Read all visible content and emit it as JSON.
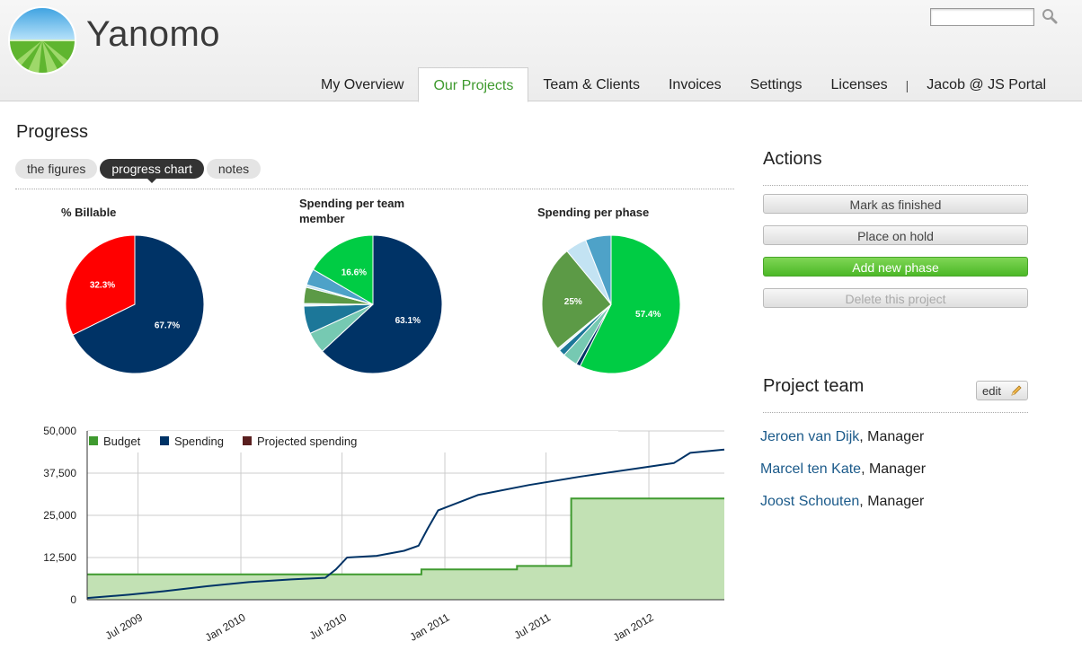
{
  "app": {
    "name": "Yanomo"
  },
  "search": {
    "placeholder": ""
  },
  "nav": {
    "tabs": [
      {
        "label": "My Overview"
      },
      {
        "label": "Our Projects"
      },
      {
        "label": "Team & Clients"
      },
      {
        "label": "Invoices"
      },
      {
        "label": "Settings"
      },
      {
        "label": "Licenses"
      }
    ],
    "separator": "|",
    "user": "Jacob @ JS Portal"
  },
  "progress": {
    "title": "Progress",
    "subtabs": [
      {
        "label": "the figures"
      },
      {
        "label": "progress chart"
      },
      {
        "label": "notes"
      }
    ]
  },
  "chart_data": [
    {
      "type": "pie",
      "title": "% Billable",
      "slices": [
        {
          "value": 67.7,
          "label": "67.7%",
          "color": "#003366"
        },
        {
          "value": 32.3,
          "label": "32.3%",
          "color": "#ff0000"
        }
      ]
    },
    {
      "type": "pie",
      "title": "Spending per team member",
      "slices": [
        {
          "value": 63.1,
          "label": "63.1%",
          "color": "#003366"
        },
        {
          "value": 5.0,
          "label": "",
          "color": "#76c9b2"
        },
        {
          "value": 6.5,
          "label": "",
          "color": "#1c7799"
        },
        {
          "value": 0.6,
          "label": "",
          "color": "#e6f3fb"
        },
        {
          "value": 3.8,
          "label": "",
          "color": "#5c9a46"
        },
        {
          "value": 0.6,
          "label": "",
          "color": "#c3e3f3"
        },
        {
          "value": 3.8,
          "label": "",
          "color": "#4ea2c8"
        },
        {
          "value": 16.6,
          "label": "16.6%",
          "color": "#00cc44"
        }
      ]
    },
    {
      "type": "pie",
      "title": "Spending per phase",
      "slices": [
        {
          "value": 57.4,
          "label": "57.4%",
          "color": "#00cc44"
        },
        {
          "value": 1.0,
          "label": "",
          "color": "#003366"
        },
        {
          "value": 3.5,
          "label": "",
          "color": "#76c9b2"
        },
        {
          "value": 1.5,
          "label": "",
          "color": "#1c7799"
        },
        {
          "value": 0.6,
          "label": "",
          "color": "#e6f3fb"
        },
        {
          "value": 25,
          "label": "25%",
          "color": "#5c9a46"
        },
        {
          "value": 5.0,
          "label": "",
          "color": "#c3e3f3"
        },
        {
          "value": 6.0,
          "label": "",
          "color": "#4ea2c8"
        }
      ]
    },
    {
      "type": "line",
      "title": "",
      "xlabel": "",
      "ylabel": "",
      "ylim": [
        0,
        50000
      ],
      "yticks": [
        "0",
        "12,500",
        "25,000",
        "37,500",
        "50,000"
      ],
      "xticks": [
        "Jul 2009",
        "Jan 2010",
        "Jul 2010",
        "Jan 2011",
        "Jul 2011",
        "Jan 2012"
      ],
      "xlim": [
        "2009-04-01",
        "2012-05-15"
      ],
      "grid": true,
      "legend": "top-left",
      "series": [
        {
          "name": "Budget",
          "type": "area",
          "color": "#3f9a2f",
          "fill": "#c2e1b4",
          "points": [
            [
              "2009-04-01",
              7500
            ],
            [
              "2010-11-20",
              7500
            ],
            [
              "2010-11-20",
              9000
            ],
            [
              "2011-05-10",
              9000
            ],
            [
              "2011-05-10",
              10000
            ],
            [
              "2011-08-15",
              10000
            ],
            [
              "2011-08-15",
              30000
            ],
            [
              "2012-05-15",
              30000
            ]
          ]
        },
        {
          "name": "Spending",
          "type": "line",
          "color": "#003366",
          "points": [
            [
              "2009-04-01",
              500
            ],
            [
              "2009-06-15",
              1500
            ],
            [
              "2009-08-15",
              2500
            ],
            [
              "2009-11-01",
              4000
            ],
            [
              "2010-01-15",
              5200
            ],
            [
              "2010-04-01",
              6000
            ],
            [
              "2010-06-01",
              6500
            ],
            [
              "2010-06-20",
              9000
            ],
            [
              "2010-07-10",
              12500
            ],
            [
              "2010-09-01",
              13000
            ],
            [
              "2010-10-20",
              14500
            ],
            [
              "2010-11-15",
              16000
            ],
            [
              "2010-12-01",
              21000
            ],
            [
              "2010-12-20",
              26500
            ],
            [
              "2011-03-01",
              31000
            ],
            [
              "2011-06-01",
              34000
            ],
            [
              "2011-09-01",
              36500
            ],
            [
              "2011-12-15",
              39000
            ],
            [
              "2012-02-15",
              40500
            ],
            [
              "2012-03-15",
              43500
            ],
            [
              "2012-05-15",
              44500
            ]
          ]
        },
        {
          "name": "Projected spending",
          "type": "line",
          "color": "#5a1f1f",
          "points": []
        }
      ]
    }
  ],
  "actions": {
    "title": "Actions",
    "buttons": [
      {
        "label": "Mark as finished"
      },
      {
        "label": "Place on hold"
      },
      {
        "label": "Add new phase"
      },
      {
        "label": "Delete this project"
      }
    ]
  },
  "team": {
    "title": "Project team",
    "edit_label": "edit",
    "members": [
      {
        "name": "Jeroen van Dijk",
        "role": ", Manager"
      },
      {
        "name": "Marcel ten Kate",
        "role": ", Manager"
      },
      {
        "name": "Joost Schouten",
        "role": ", Manager"
      }
    ]
  },
  "colors": {
    "accent": "#3f9a2f",
    "link": "#1b5a8a",
    "add_button": "#5cc42f"
  }
}
